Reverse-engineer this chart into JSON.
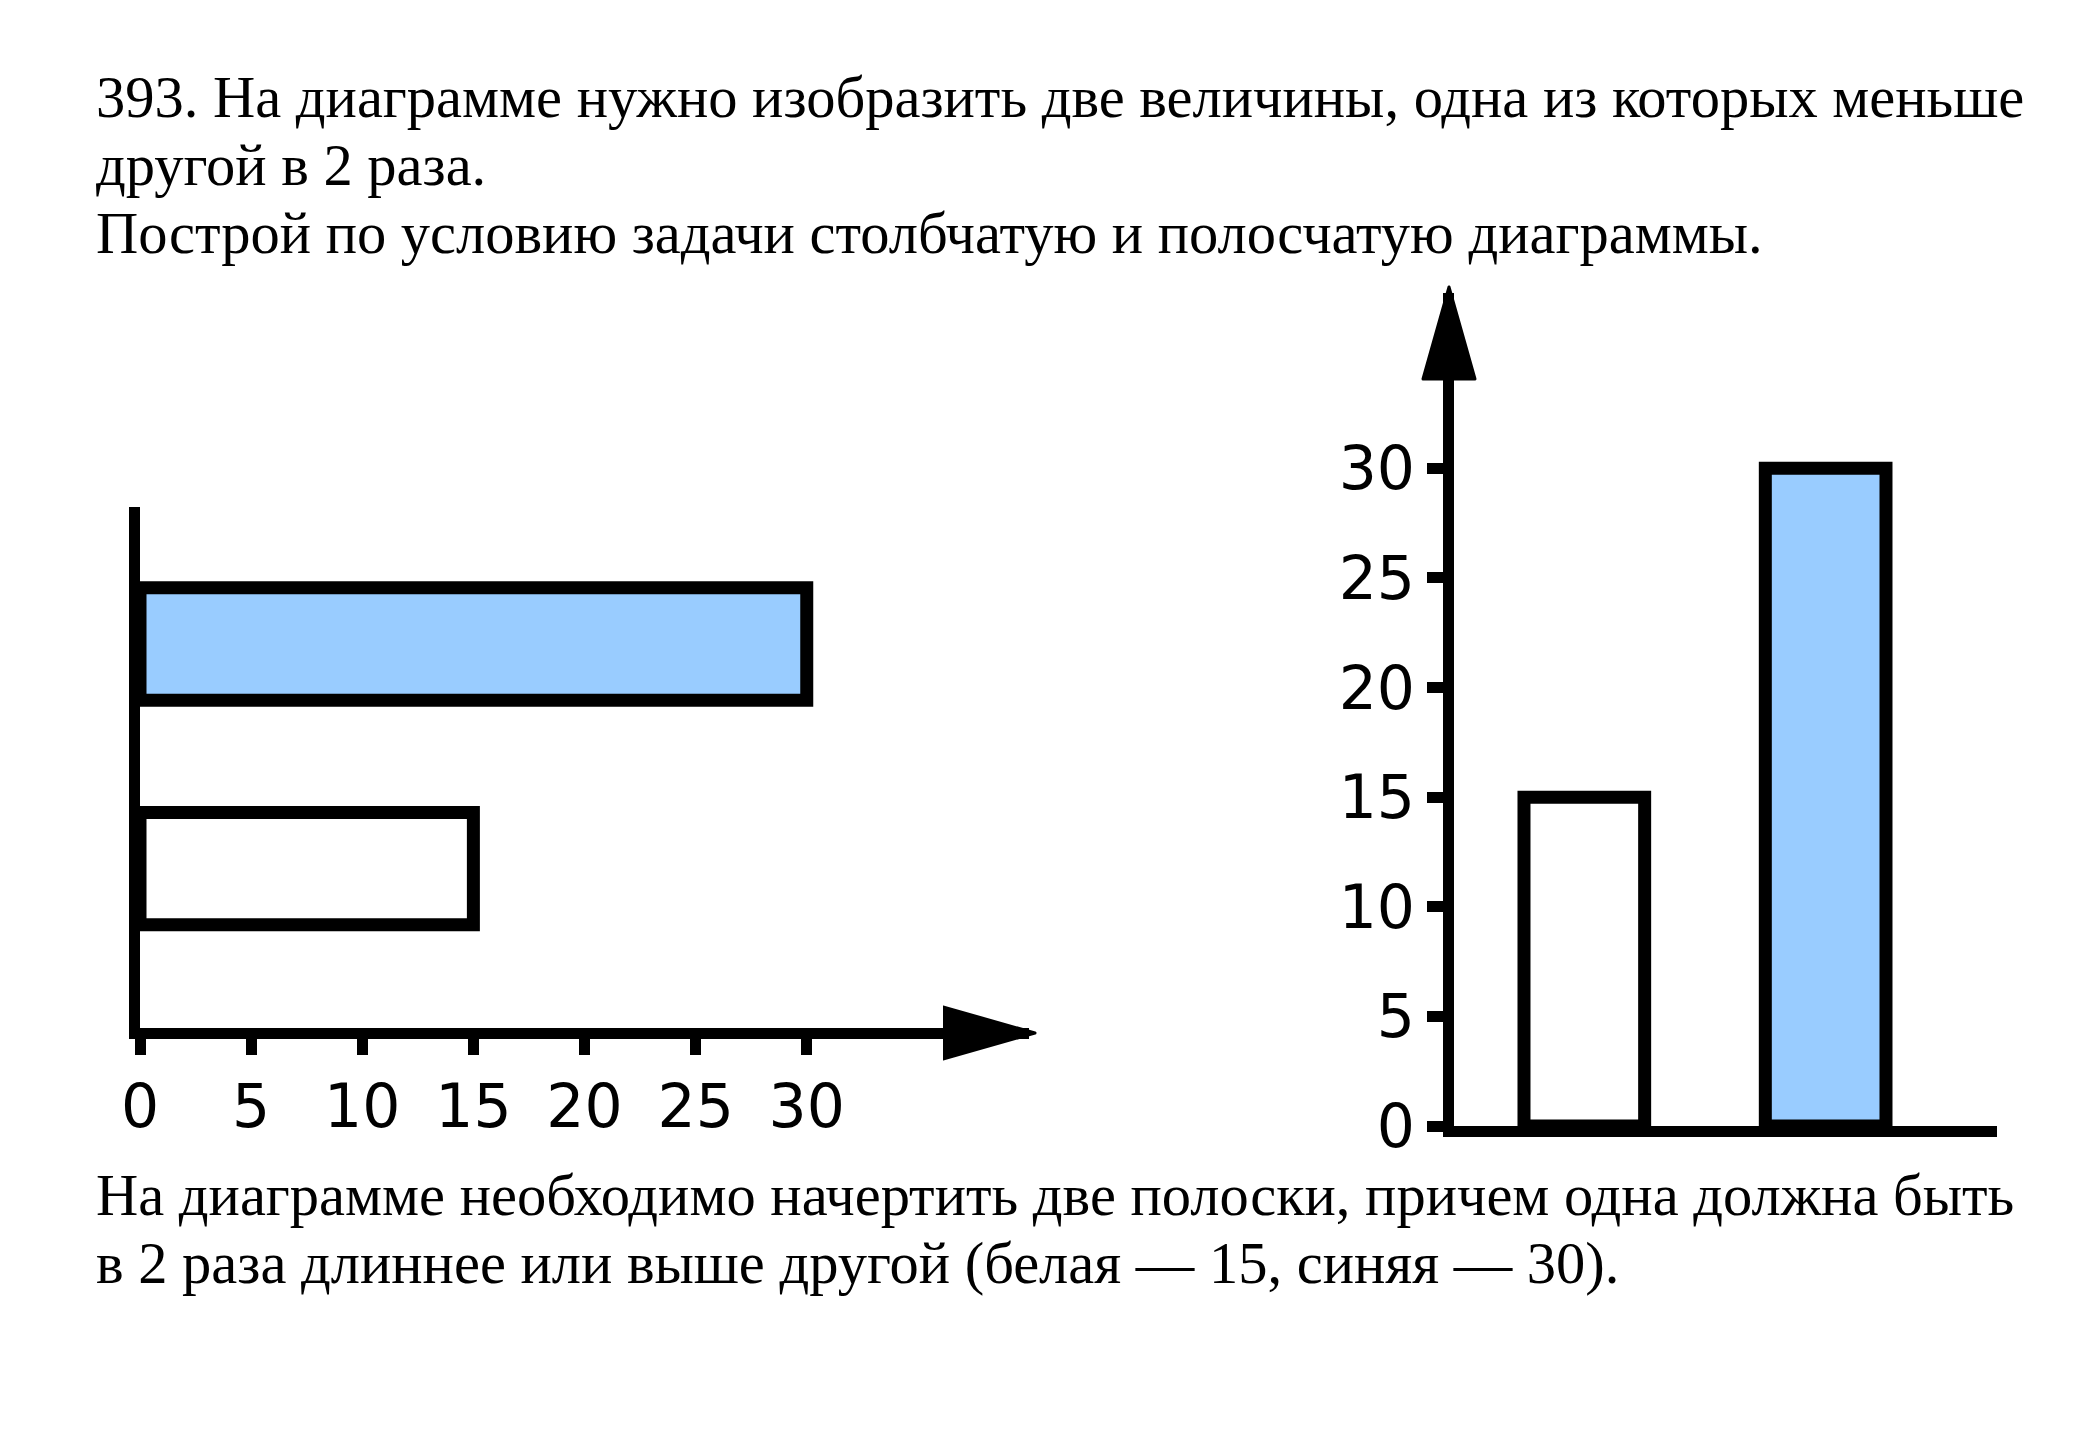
{
  "chart_data": [
    {
      "type": "other",
      "title": "393. На диаграмме нужно изобразить две величины, одна из которых меньше другой в 2 раза.",
      "subtitle": "Построй по условию задачи столбчатую и полосчатую диаграммы."
    },
    {
      "type": "bar",
      "orientation": "horizontal",
      "categories": [
        null,
        null
      ],
      "values": [
        30,
        15
      ],
      "colors": [
        "#99ccff",
        "#ffffff"
      ],
      "xlim": [
        0,
        40
      ],
      "xticks": [
        0,
        5,
        10,
        15,
        20,
        25,
        30
      ],
      "tick_labels": "x"
    },
    {
      "type": "bar",
      "categories": [
        null,
        null
      ],
      "values": [
        15,
        30
      ],
      "colors": [
        "#ffffff",
        "#99ccff"
      ],
      "ylim": [
        0,
        38
      ],
      "yticks": [
        0,
        5,
        10,
        15,
        20,
        25,
        30
      ],
      "tick_labels": "y"
    },
    {
      "type": "other",
      "annotations": [
        "На диаграмме необходимо начертить две полоски, причем одна должна быть в 2 раза длиннее или выше другой (белая — 15, синяя — 30)."
      ]
    }
  ]
}
